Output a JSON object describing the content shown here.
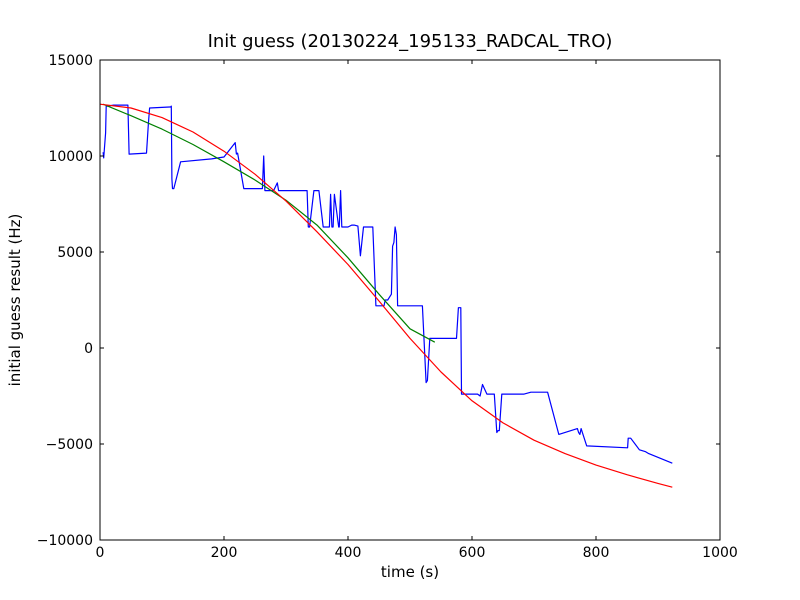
{
  "chart_data": {
    "type": "line",
    "title": "Init guess (20130224_195133_RADCAL_TRO)",
    "xlabel": "time (s)",
    "ylabel": "initial guess result (Hz)",
    "xlim": [
      0,
      1000
    ],
    "ylim": [
      -10000,
      15000
    ],
    "xticks": [
      0,
      200,
      400,
      600,
      800,
      1000
    ],
    "yticks": [
      -10000,
      -5000,
      0,
      5000,
      10000,
      15000
    ],
    "grid": false,
    "legend": "none",
    "series": [
      {
        "color": "#0000ff",
        "x": [
          5,
          6,
          9,
          10,
          12,
          22,
          45,
          47,
          75,
          78,
          80,
          112,
          114,
          115,
          116,
          117,
          118,
          119,
          130,
          180,
          200,
          218,
          220,
          222,
          232,
          262,
          264,
          266,
          268,
          270,
          276,
          280,
          286,
          288,
          290,
          296,
          330,
          334,
          336,
          338,
          345,
          346,
          348,
          353,
          360,
          366,
          370,
          372,
          374,
          376,
          378,
          385,
          386,
          388,
          390,
          392,
          400,
          406,
          408,
          410,
          416,
          420,
          425,
          430,
          440,
          445,
          448,
          458,
          460,
          462,
          464,
          470,
          472,
          474,
          476,
          478,
          480,
          486,
          490,
          493,
          496,
          498,
          500,
          506,
          510,
          520,
          526,
          528,
          532,
          538,
          550,
          560,
          575,
          578,
          582,
          583,
          590,
          596,
          607,
          609,
          613,
          617,
          624,
          628,
          636,
          640,
          642,
          644,
          648,
          650,
          652,
          654,
          658,
          660,
          664,
          670,
          684,
          695,
          722,
          740,
          770,
          772,
          774,
          776,
          785,
          851,
          852,
          854,
          856,
          870,
          880,
          885,
          923
        ],
        "y": [
          10200,
          9900,
          11200,
          12600,
          12600,
          12650,
          12650,
          10100,
          10150,
          11700,
          12500,
          12550,
          12550,
          12600,
          8800,
          8300,
          8300,
          8300,
          9700,
          9850,
          9950,
          10700,
          10100,
          10150,
          8300,
          8300,
          10000,
          8200,
          8200,
          8200,
          8200,
          8200,
          8600,
          8200,
          8200,
          8200,
          8200,
          8200,
          6300,
          6300,
          8200,
          8200,
          8200,
          8200,
          6300,
          6300,
          6300,
          8000,
          6300,
          6300,
          8000,
          6300,
          6300,
          8200,
          6300,
          6300,
          6300,
          6400,
          6400,
          6400,
          6350,
          4800,
          6300,
          6300,
          6300,
          2200,
          2200,
          2200,
          2500,
          2500,
          2500,
          2800,
          5300,
          5500,
          6300,
          5900,
          2200,
          2200,
          2200,
          2200,
          2200,
          2200,
          2200,
          2200,
          2200,
          2200,
          -1800,
          -1700,
          500,
          500,
          500,
          500,
          500,
          2100,
          2100,
          -2400,
          -2400,
          -2400,
          -2400,
          -2400,
          -2500,
          -1900,
          -2400,
          -2400,
          -2400,
          -4400,
          -4300,
          -4300,
          -2400,
          -2400,
          -2400,
          -2400,
          -2400,
          -2400,
          -2400,
          -2400,
          -2400,
          -2300,
          -2300,
          -4500,
          -4200,
          -4400,
          -4500,
          -4200,
          -5100,
          -5200,
          -4700,
          -4700,
          -4700,
          -5300,
          -5400,
          -5500,
          -6000
        ]
      },
      {
        "color": "#008000",
        "x": [
          5,
          50,
          100,
          150,
          200,
          250,
          300,
          350,
          400,
          450,
          500,
          540
        ],
        "y": [
          12700,
          12100,
          11400,
          10600,
          9700,
          8750,
          7700,
          6400,
          4700,
          2800,
          1000,
          300
        ]
      },
      {
        "color": "#ff0000",
        "x": [
          0,
          50,
          100,
          150,
          200,
          250,
          300,
          350,
          400,
          450,
          500,
          550,
          600,
          650,
          700,
          750,
          800,
          850,
          900,
          923
        ],
        "y": [
          12700,
          12500,
          12000,
          11250,
          10250,
          9050,
          7650,
          6050,
          4350,
          2450,
          500,
          -1250,
          -2750,
          -3900,
          -4800,
          -5500,
          -6100,
          -6600,
          -7050,
          -7250
        ]
      }
    ]
  }
}
